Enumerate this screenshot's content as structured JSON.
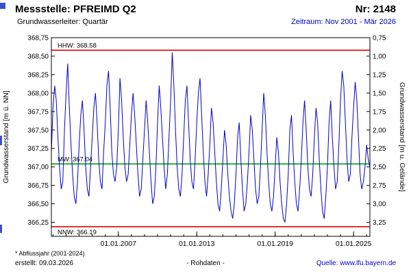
{
  "header": {
    "title": "Messstelle: PFREIMD Q2",
    "number": "Nr: 2148",
    "aquifer": "Grundwasserleiter: Quartär",
    "period": "Zeitraum: Nov 2001 - Mär 2026"
  },
  "footer": {
    "note": "* Abflussjahr (2001-2024)",
    "created": "erstellt: 09.03.2026",
    "center": "- Rohdaten -",
    "source": "Quelle: www.lfu.bayern.de"
  },
  "colors": {
    "series": "#0000cc",
    "extreme_line": "#e00000",
    "mean_line": "#00a000",
    "link": "#0000cc",
    "frame": "#000000"
  },
  "chart_data": {
    "type": "line",
    "title": "",
    "ylabel_left": "Grundwasserstand [m ü. NN]",
    "ylabel_right": "Grundwasserstand [m u. Gelände]",
    "x_range": [
      2001.875,
      2026.25
    ],
    "y_left_range": [
      366.06,
      368.75
    ],
    "grid": false,
    "y_left_ticks": [
      {
        "v": 368.75,
        "label": "368,75"
      },
      {
        "v": 368.5,
        "label": "368,50"
      },
      {
        "v": 368.25,
        "label": "368,25"
      },
      {
        "v": 368.0,
        "label": "368,00"
      },
      {
        "v": 367.75,
        "label": "367,75"
      },
      {
        "v": 367.5,
        "label": "367,50"
      },
      {
        "v": 367.25,
        "label": "367,25"
      },
      {
        "v": 367.0,
        "label": "367,00"
      },
      {
        "v": 366.75,
        "label": "366,75"
      },
      {
        "v": 366.5,
        "label": "366,50"
      },
      {
        "v": 366.25,
        "label": "366,25"
      }
    ],
    "y_right_ticks": [
      {
        "v": 368.75,
        "label": "0,75"
      },
      {
        "v": 368.5,
        "label": "1,00"
      },
      {
        "v": 368.25,
        "label": "1,25"
      },
      {
        "v": 368.0,
        "label": "1,50"
      },
      {
        "v": 367.75,
        "label": "1,75"
      },
      {
        "v": 367.5,
        "label": "2,00"
      },
      {
        "v": 367.25,
        "label": "2,25"
      },
      {
        "v": 367.0,
        "label": "2,50"
      },
      {
        "v": 366.75,
        "label": "2,75"
      },
      {
        "v": 366.5,
        "label": "3,00"
      },
      {
        "v": 366.25,
        "label": "3,25"
      }
    ],
    "x_ticks": [
      {
        "v": 2007.0,
        "label": "01.01.2007"
      },
      {
        "v": 2013.0,
        "label": "01.01.2013"
      },
      {
        "v": 2019.0,
        "label": "01.01.2019"
      },
      {
        "v": 2025.0,
        "label": "01.01.2025"
      }
    ],
    "reference_lines": [
      {
        "name": "HHW",
        "label": "HHW: 368.58",
        "value": 368.58,
        "color": "#e00000",
        "label_pos": "above"
      },
      {
        "name": "MW",
        "label": "MW: 367.04",
        "value": 367.04,
        "color": "#00a000",
        "label_pos": "above"
      },
      {
        "name": "NNW",
        "label": "NNW: 366.19",
        "value": 366.19,
        "color": "#e00000",
        "label_pos": "below"
      }
    ],
    "series": [
      {
        "name": "Grundwasserstand Rohdaten",
        "color": "#0000cc",
        "x_start": 2001.875,
        "x_step": 0.125,
        "values": [
          367.2,
          367.8,
          368.1,
          367.9,
          367.4,
          367.0,
          366.7,
          366.8,
          367.5,
          368.0,
          368.4,
          367.8,
          367.3,
          366.9,
          366.6,
          366.5,
          366.8,
          367.3,
          367.7,
          367.9,
          367.5,
          367.0,
          366.7,
          366.6,
          367.0,
          367.4,
          367.8,
          368.0,
          367.6,
          367.1,
          366.8,
          366.7,
          367.2,
          367.6,
          368.1,
          368.3,
          367.8,
          367.2,
          366.9,
          366.8,
          367.0,
          367.5,
          368.2,
          367.9,
          367.4,
          367.0,
          366.8,
          366.9,
          367.3,
          367.7,
          368.0,
          367.7,
          367.3,
          366.9,
          366.6,
          366.7,
          367.1,
          367.5,
          367.9,
          367.6,
          367.2,
          366.8,
          366.5,
          366.6,
          367.0,
          367.6,
          368.1,
          367.8,
          367.4,
          367.0,
          366.7,
          366.9,
          367.4,
          367.9,
          368.55,
          368.1,
          367.5,
          367.0,
          366.7,
          366.6,
          366.9,
          367.4,
          367.9,
          368.1,
          367.6,
          367.1,
          366.8,
          366.7,
          367.1,
          367.6,
          368.0,
          368.2,
          367.7,
          367.2,
          366.8,
          366.6,
          366.9,
          367.3,
          367.8,
          367.6,
          367.2,
          366.8,
          366.5,
          366.4,
          366.7,
          367.1,
          367.5,
          367.3,
          366.9,
          366.6,
          366.4,
          366.3,
          366.5,
          366.9,
          367.4,
          367.6,
          367.1,
          366.7,
          366.4,
          366.5,
          366.8,
          367.2,
          367.7,
          367.5,
          367.1,
          366.7,
          366.5,
          366.6,
          367.0,
          367.5,
          368.0,
          367.7,
          367.2,
          366.8,
          366.5,
          366.4,
          366.6,
          367.0,
          367.4,
          367.2,
          366.8,
          366.5,
          366.3,
          366.25,
          366.5,
          366.9,
          367.5,
          367.7,
          367.2,
          366.8,
          366.5,
          366.4,
          366.7,
          367.1,
          367.6,
          367.9,
          367.5,
          367.0,
          366.7,
          366.6,
          366.9,
          367.4,
          367.8,
          367.6,
          367.1,
          366.7,
          366.4,
          366.3,
          366.6,
          367.0,
          367.6,
          367.9,
          367.4,
          367.0,
          366.7,
          366.8,
          367.3,
          367.9,
          368.3,
          368.1,
          367.6,
          367.1,
          366.8,
          366.9,
          367.4,
          367.8,
          368.15,
          367.9,
          367.4,
          366.9,
          366.7,
          366.8,
          367.0,
          367.3,
          367.1,
          367.0
        ]
      }
    ]
  }
}
